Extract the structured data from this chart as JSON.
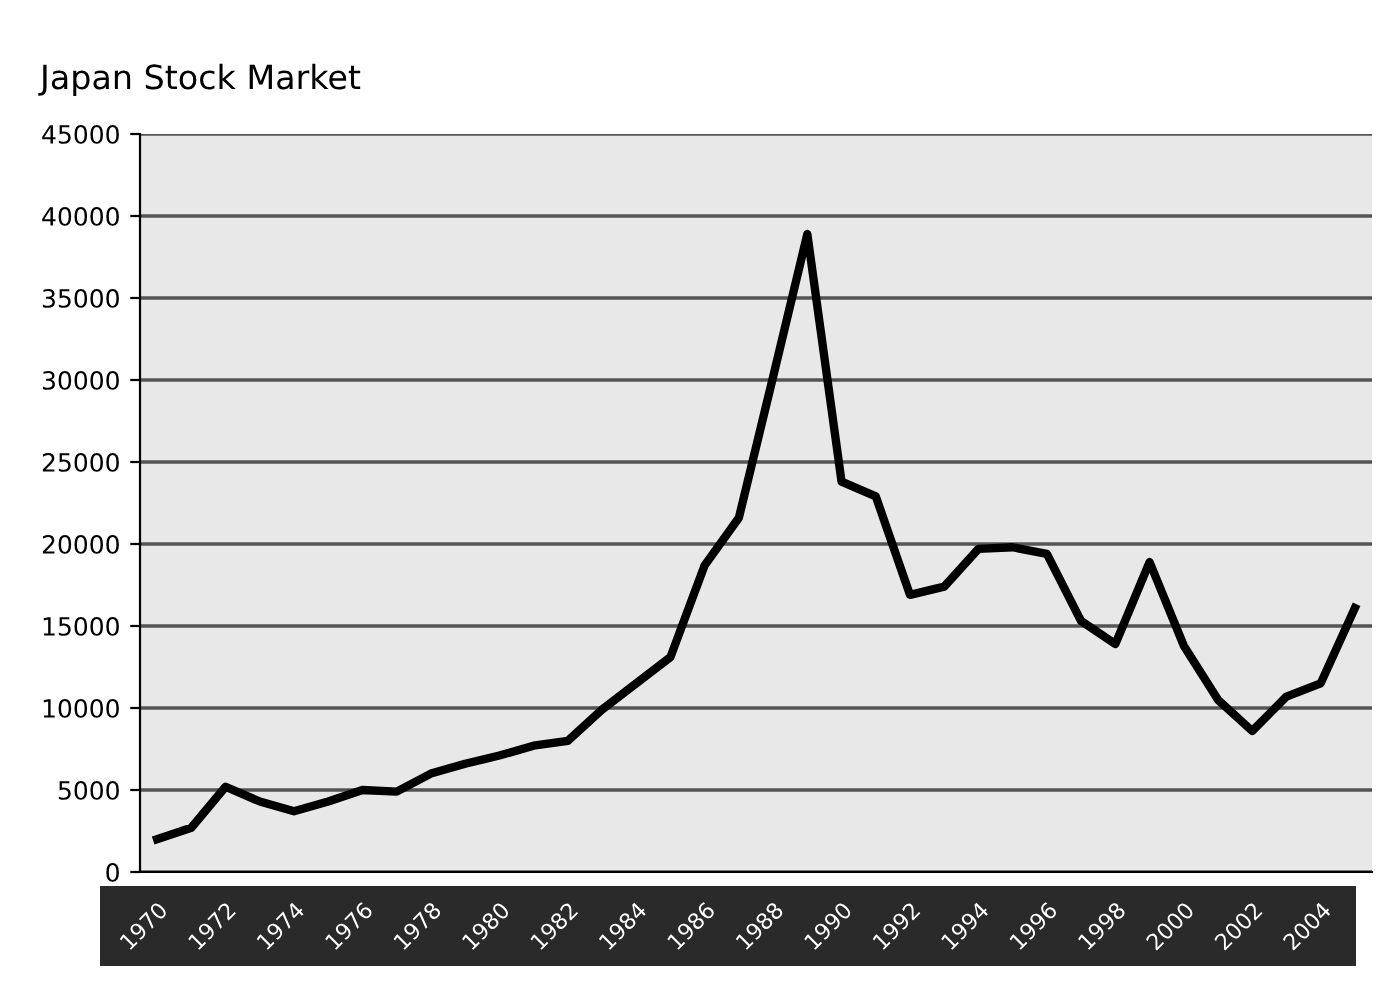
{
  "chart_data": {
    "type": "line",
    "title": "Japan Stock Market",
    "categories": [
      "1970",
      null,
      "1972",
      null,
      "1974",
      null,
      "1976",
      null,
      "1978",
      null,
      "1980",
      null,
      "1982",
      null,
      "1984",
      null,
      "1986",
      null,
      "1988",
      null,
      "1990",
      null,
      "1992",
      null,
      "1994",
      null,
      "1996",
      null,
      "1998",
      null,
      "2000",
      null,
      "2002",
      null,
      "2004",
      null
    ],
    "series": [
      {
        "color": "#000000",
        "values": [
          2000,
          2700,
          5200,
          4300,
          3700,
          4300,
          5000,
          4900,
          6000,
          6600,
          7100,
          7700,
          8000,
          9900,
          11500,
          13100,
          18700,
          21600,
          30200,
          38900,
          23800,
          22900,
          16900,
          17400,
          19700,
          19800,
          19400,
          15300,
          13900,
          18900,
          13800,
          10500,
          8600,
          10700,
          11500,
          16100
        ]
      }
    ],
    "ylim": [
      0,
      45000
    ],
    "yticks": [
      0,
      5000,
      10000,
      15000,
      20000,
      25000,
      30000,
      35000,
      40000,
      45000
    ],
    "grid": "y",
    "legend": false,
    "marker": "none",
    "line_style": "solid"
  }
}
